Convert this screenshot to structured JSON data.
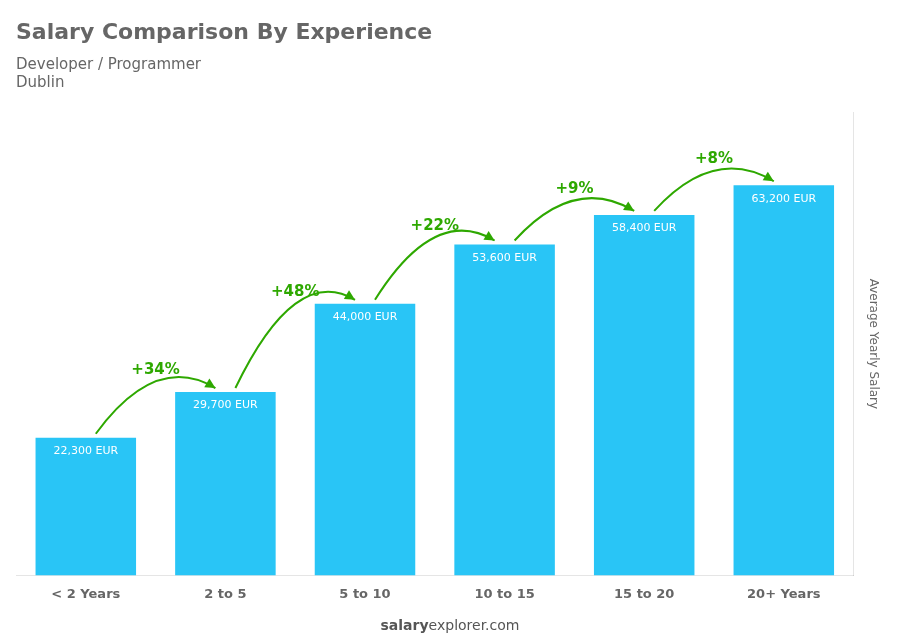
{
  "chart_data": {
    "type": "bar",
    "title": "Salary Comparison By Experience",
    "subtitle": [
      "Developer / Programmer",
      "Dublin"
    ],
    "categories": [
      "< 2 Years",
      "2 to 5",
      "5 to 10",
      "10 to 15",
      "15 to 20",
      "20+ Years"
    ],
    "values": [
      22300,
      29700,
      44000,
      53600,
      58400,
      63200
    ],
    "value_labels": [
      "22,300 EUR",
      "29,700 EUR",
      "44,000 EUR",
      "53,600 EUR",
      "58,400 EUR",
      "63,200 EUR"
    ],
    "data_labels": true,
    "color": "#29c5f6",
    "ylabel": "Average Yearly Salary",
    "ylim": [
      0,
      75000
    ],
    "grid": false,
    "tick_labels": "x",
    "annotations": [
      {
        "text": "+34%",
        "from": "< 2 Years",
        "to": "2 to 5"
      },
      {
        "text": "+48%",
        "from": "2 to 5",
        "to": "5 to 10"
      },
      {
        "text": "+22%",
        "from": "5 to 10",
        "to": "10 to 15"
      },
      {
        "text": "+9%",
        "from": "10 to 15",
        "to": "15 to 20"
      },
      {
        "text": "+8%",
        "from": "15 to 20",
        "to": "20+ Years"
      },
      "salary",
      "explorer.com"
    ]
  }
}
